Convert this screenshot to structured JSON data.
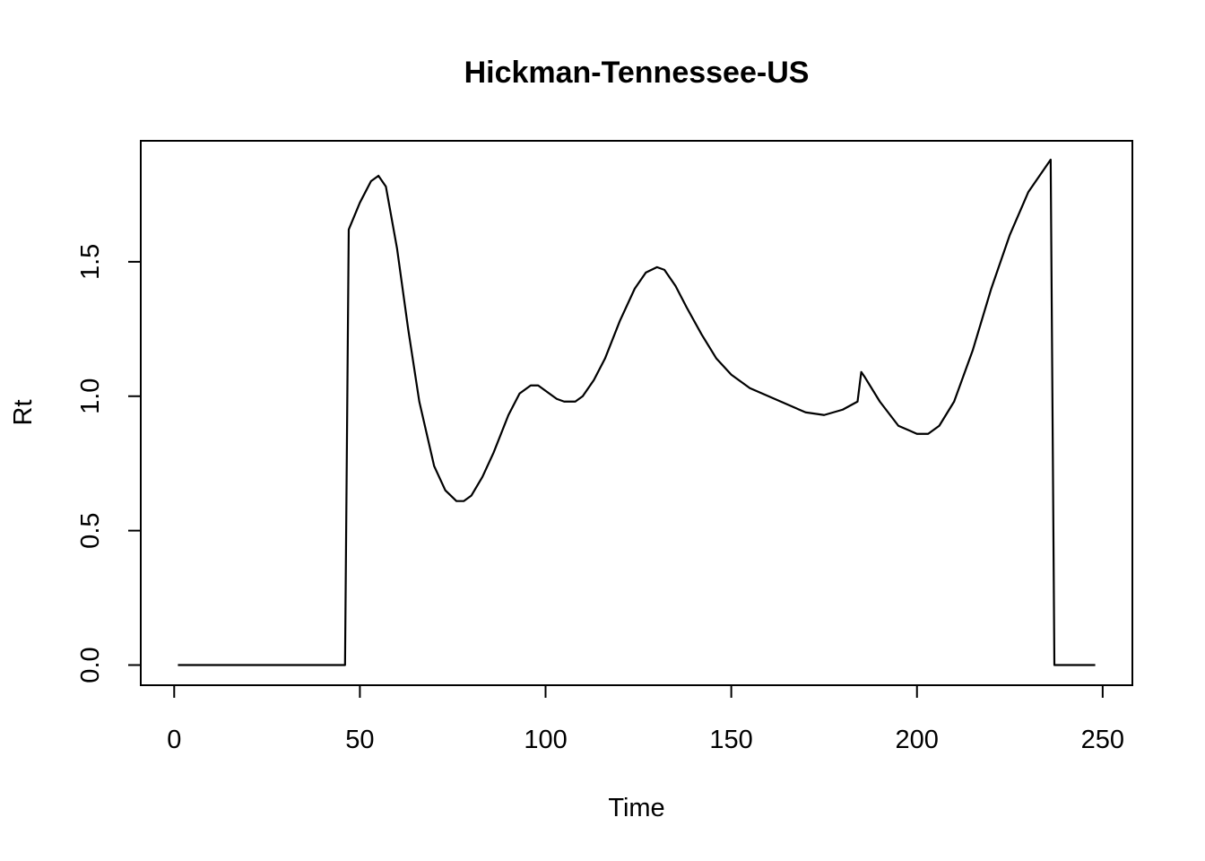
{
  "chart_data": {
    "type": "line",
    "title": "Hickman-Tennessee-US",
    "xlabel": "Time",
    "ylabel": "Rt",
    "xlim": [
      -9,
      258
    ],
    "ylim": [
      -0.075,
      1.95
    ],
    "xticks": [
      0,
      50,
      100,
      150,
      200,
      250
    ],
    "yticks": [
      0.0,
      0.5,
      1.0,
      1.5
    ],
    "xtick_labels": [
      "0",
      "50",
      "100",
      "150",
      "200",
      "250"
    ],
    "ytick_labels": [
      "0.0",
      "0.5",
      "1.0",
      "1.5"
    ],
    "grid": false,
    "series": [
      {
        "color": "#000000",
        "x": [
          1,
          46,
          47,
          50,
          53,
          55,
          57,
          60,
          63,
          66,
          70,
          73,
          76,
          78,
          80,
          83,
          86,
          90,
          93,
          96,
          98,
          100,
          103,
          105,
          108,
          110,
          113,
          116,
          120,
          124,
          127,
          130,
          132,
          135,
          138,
          142,
          146,
          150,
          155,
          160,
          165,
          170,
          175,
          180,
          184,
          185,
          186,
          190,
          195,
          200,
          203,
          206,
          210,
          215,
          220,
          225,
          230,
          233,
          236,
          237,
          240,
          248
        ],
        "y": [
          0.0,
          0.0,
          1.62,
          1.72,
          1.8,
          1.82,
          1.78,
          1.55,
          1.25,
          0.98,
          0.74,
          0.65,
          0.61,
          0.61,
          0.63,
          0.7,
          0.79,
          0.93,
          1.01,
          1.04,
          1.04,
          1.02,
          0.99,
          0.98,
          0.98,
          1.0,
          1.06,
          1.14,
          1.28,
          1.4,
          1.46,
          1.48,
          1.47,
          1.41,
          1.33,
          1.23,
          1.14,
          1.08,
          1.03,
          1.0,
          0.97,
          0.94,
          0.93,
          0.95,
          0.98,
          1.09,
          1.07,
          0.98,
          0.89,
          0.86,
          0.86,
          0.89,
          0.98,
          1.17,
          1.4,
          1.6,
          1.76,
          1.82,
          1.88,
          0.0,
          0.0,
          0.0
        ]
      }
    ]
  }
}
